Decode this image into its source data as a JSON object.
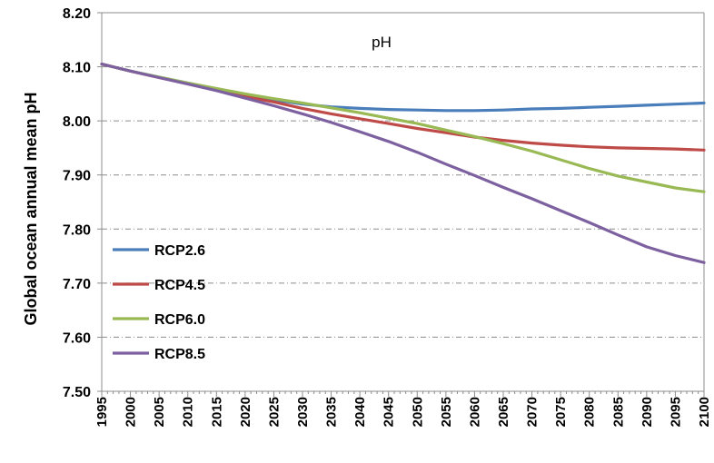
{
  "chart_data": {
    "type": "line",
    "title": "pH",
    "ylabel": "Global ocean annual mean pH",
    "xlabel": "",
    "xlim": [
      1995,
      2100
    ],
    "ylim": [
      7.5,
      8.2
    ],
    "x_ticks": [
      "1995",
      "2000",
      "2005",
      "2010",
      "2015",
      "2020",
      "2025",
      "2030",
      "2035",
      "2040",
      "2045",
      "2050",
      "2055",
      "2060",
      "2065",
      "2070",
      "2075",
      "2080",
      "2085",
      "2090",
      "2095",
      "2100"
    ],
    "y_ticks": [
      "8.20",
      "8.10",
      "8.00",
      "7.90",
      "7.80",
      "7.70",
      "7.60",
      "7.50"
    ],
    "grid": "horizontal dash-dot",
    "legend_position": "left-bottom",
    "x": [
      1995,
      2000,
      2005,
      2010,
      2015,
      2020,
      2025,
      2030,
      2035,
      2040,
      2045,
      2050,
      2055,
      2060,
      2065,
      2070,
      2075,
      2080,
      2085,
      2090,
      2095,
      2100
    ],
    "series": [
      {
        "name": "RCP2.6",
        "color": "#4a7ebb",
        "values": [
          8.105,
          8.092,
          8.081,
          8.07,
          8.059,
          8.048,
          8.039,
          8.031,
          8.026,
          8.023,
          8.021,
          8.02,
          8.019,
          8.019,
          8.02,
          8.022,
          8.023,
          8.025,
          8.027,
          8.029,
          8.031,
          8.033
        ]
      },
      {
        "name": "RCP4.5",
        "color": "#be4b48",
        "values": [
          8.105,
          8.092,
          8.08,
          8.069,
          8.057,
          8.045,
          8.035,
          8.023,
          8.013,
          8.004,
          7.995,
          7.986,
          7.978,
          7.97,
          7.964,
          7.959,
          7.955,
          7.952,
          7.95,
          7.949,
          7.948,
          7.946
        ]
      },
      {
        "name": "RCP6.0",
        "color": "#98b954",
        "values": [
          8.105,
          8.092,
          8.081,
          8.07,
          8.06,
          8.05,
          8.041,
          8.033,
          8.024,
          8.015,
          8.005,
          7.995,
          7.983,
          7.971,
          7.958,
          7.944,
          7.928,
          7.912,
          7.898,
          7.887,
          7.876,
          7.869
        ]
      },
      {
        "name": "RCP8.5",
        "color": "#7d60a0",
        "values": [
          8.105,
          8.092,
          8.08,
          8.068,
          8.056,
          8.042,
          8.028,
          8.013,
          7.997,
          7.98,
          7.962,
          7.942,
          7.92,
          7.899,
          7.877,
          7.856,
          7.834,
          7.812,
          7.789,
          7.767,
          7.751,
          7.738
        ]
      }
    ]
  }
}
